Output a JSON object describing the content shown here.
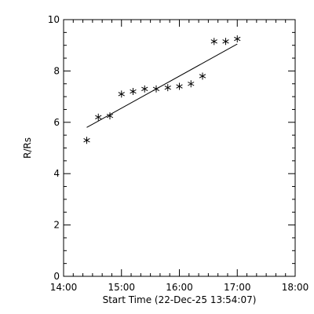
{
  "chart_data": {
    "type": "scatter",
    "xlabel": "Start Time (22-Dec-25 13:54:07)",
    "ylabel": "R/Rs",
    "x_ticks": [
      "14:00",
      "15:00",
      "16:00",
      "17:00",
      "18:00"
    ],
    "y_ticks": [
      "0",
      "2",
      "4",
      "6",
      "8",
      "10"
    ],
    "xlim": [
      "14:00",
      "18:00"
    ],
    "ylim": [
      0,
      10
    ],
    "grid": false,
    "series": [
      {
        "marker": "asterisk",
        "points": [
          {
            "x": "14:24",
            "y": 5.3
          },
          {
            "x": "14:36",
            "y": 6.2
          },
          {
            "x": "14:48",
            "y": 6.25
          },
          {
            "x": "15:00",
            "y": 7.1
          },
          {
            "x": "15:12",
            "y": 7.2
          },
          {
            "x": "15:24",
            "y": 7.3
          },
          {
            "x": "15:36",
            "y": 7.3
          },
          {
            "x": "15:48",
            "y": 7.35
          },
          {
            "x": "16:00",
            "y": 7.4
          },
          {
            "x": "16:12",
            "y": 7.5
          },
          {
            "x": "16:24",
            "y": 7.8
          },
          {
            "x": "16:36",
            "y": 9.15
          },
          {
            "x": "16:48",
            "y": 9.15
          },
          {
            "x": "17:00",
            "y": 9.25
          }
        ]
      }
    ],
    "fit_line": {
      "x": [
        "14:24",
        "17:00"
      ],
      "y": [
        5.8,
        9.05
      ]
    },
    "colors": {
      "axes": "#000000",
      "markers": "#000000",
      "line": "#000000",
      "background": "#ffffff"
    }
  }
}
